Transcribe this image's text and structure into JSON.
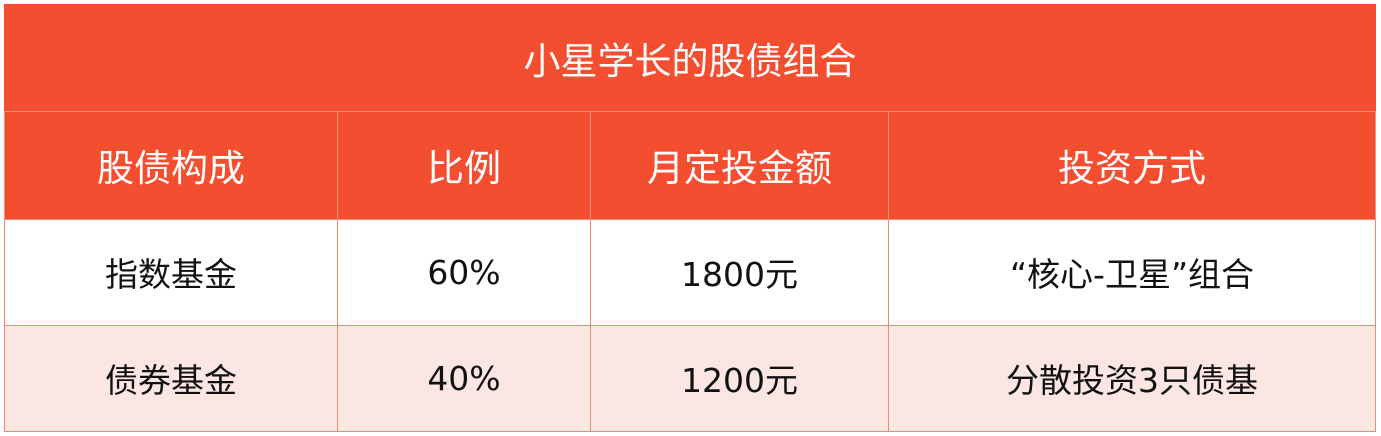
{
  "title": "小星学长的股债组合",
  "headers": [
    "股债构成",
    "比例",
    "月定投金额",
    "投资方式"
  ],
  "rows": [
    [
      "指数基金",
      "60%",
      "1800元",
      "“核心-卫星”组合"
    ],
    [
      "债券基金",
      "40%",
      "1200元",
      "分散投资3只债基"
    ]
  ],
  "colors": {
    "header_bg": "#f24e2f",
    "header_text": "#ffffff",
    "row_alt_bg": "#fbe6e3",
    "border": "#f08a76"
  }
}
